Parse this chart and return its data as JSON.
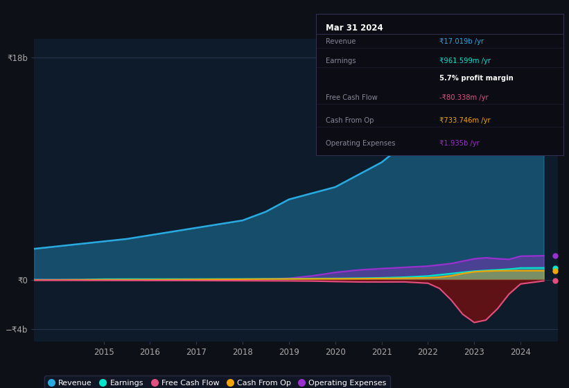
{
  "bg_color": "#0d1117",
  "plot_bg_color": "#0d1b2a",
  "series_colors": {
    "revenue": "#29ABE2",
    "earnings": "#00E5CC",
    "free_cash_flow": "#E05080",
    "cash_from_op": "#F0A500",
    "operating_expenses": "#9B30D0"
  },
  "legend_items": [
    {
      "label": "Revenue",
      "color": "#29ABE2"
    },
    {
      "label": "Earnings",
      "color": "#00E5CC"
    },
    {
      "label": "Free Cash Flow",
      "color": "#E05080"
    },
    {
      "label": "Cash From Op",
      "color": "#F0A500"
    },
    {
      "label": "Operating Expenses",
      "color": "#9B30D0"
    }
  ],
  "tooltip_title": "Mar 31 2024",
  "tooltip_rows": [
    {
      "label": "Revenue",
      "value": "₹17.019b /yr",
      "value_color": "#29ABE2",
      "bold_label": false
    },
    {
      "label": "Earnings",
      "value": "₹961.599m /yr",
      "value_color": "#00E5CC",
      "bold_label": false
    },
    {
      "label": "",
      "value": "5.7% profit margin",
      "value_color": "#ffffff",
      "bold_label": true
    },
    {
      "label": "Free Cash Flow",
      "value": "-₹80.338m /yr",
      "value_color": "#E05080",
      "bold_label": false
    },
    {
      "label": "Cash From Op",
      "value": "₹733.746m /yr",
      "value_color": "#F0A500",
      "bold_label": false
    },
    {
      "label": "Operating Expenses",
      "value": "₹1.935b /yr",
      "value_color": "#9B30D0",
      "bold_label": false
    }
  ],
  "x_years": [
    2013.5,
    2014,
    2014.5,
    2015,
    2015.5,
    2016,
    2016.5,
    2017,
    2017.5,
    2018,
    2018.5,
    2019,
    2019.5,
    2020,
    2020.5,
    2021,
    2021.5,
    2022,
    2022.25,
    2022.5,
    2022.75,
    2023,
    2023.25,
    2023.5,
    2023.75,
    2024,
    2024.5
  ],
  "revenue": [
    2.5,
    2.7,
    2.9,
    3.1,
    3.3,
    3.6,
    3.9,
    4.2,
    4.5,
    4.8,
    5.5,
    6.5,
    7.0,
    7.5,
    8.5,
    9.5,
    11.0,
    13.5,
    13.0,
    12.5,
    12.0,
    12.5,
    13.5,
    14.5,
    15.5,
    17.0,
    17.0
  ],
  "earnings": [
    0.0,
    0.0,
    0.0,
    0.05,
    0.05,
    0.05,
    0.05,
    0.05,
    0.06,
    0.06,
    0.07,
    0.07,
    0.1,
    0.1,
    0.12,
    0.15,
    0.2,
    0.3,
    0.4,
    0.5,
    0.6,
    0.7,
    0.75,
    0.8,
    0.85,
    0.96,
    0.96
  ],
  "free_cash_flow": [
    -0.05,
    -0.05,
    -0.06,
    -0.06,
    -0.06,
    -0.07,
    -0.07,
    -0.07,
    -0.08,
    -0.08,
    -0.09,
    -0.1,
    -0.1,
    -0.15,
    -0.2,
    -0.2,
    -0.15,
    -0.2,
    -0.5,
    -1.5,
    -3.0,
    -3.8,
    -3.5,
    -2.5,
    -1.0,
    -0.08,
    -0.08
  ],
  "cash_from_op": [
    -0.03,
    -0.02,
    -0.01,
    0.0,
    0.0,
    0.0,
    0.01,
    0.02,
    0.03,
    0.04,
    0.05,
    0.06,
    0.07,
    0.07,
    0.08,
    0.1,
    0.12,
    0.15,
    0.2,
    0.3,
    0.5,
    0.65,
    0.7,
    0.72,
    0.73,
    0.73,
    0.73
  ],
  "operating_expenses": [
    0.0,
    0.0,
    0.0,
    0.0,
    0.0,
    0.0,
    0.0,
    0.0,
    0.0,
    0.0,
    0.05,
    0.1,
    0.3,
    0.6,
    0.8,
    0.9,
    1.0,
    1.1,
    1.2,
    1.3,
    1.5,
    1.7,
    1.8,
    1.7,
    1.6,
    1.94,
    1.94
  ],
  "x_tick_positions": [
    2015,
    2016,
    2017,
    2018,
    2019,
    2020,
    2021,
    2022,
    2023,
    2024
  ],
  "x_tick_labels": [
    "2015",
    "2016",
    "2017",
    "2018",
    "2019",
    "2020",
    "2021",
    "2022",
    "2023",
    "2024"
  ],
  "y_tick_positions": [
    -4,
    0,
    18
  ],
  "y_tick_labels": [
    "−₹4b",
    "₹0",
    "₹18b"
  ],
  "xlim": [
    2013.5,
    2024.8
  ],
  "ylim": [
    -5.0,
    19.5
  ]
}
